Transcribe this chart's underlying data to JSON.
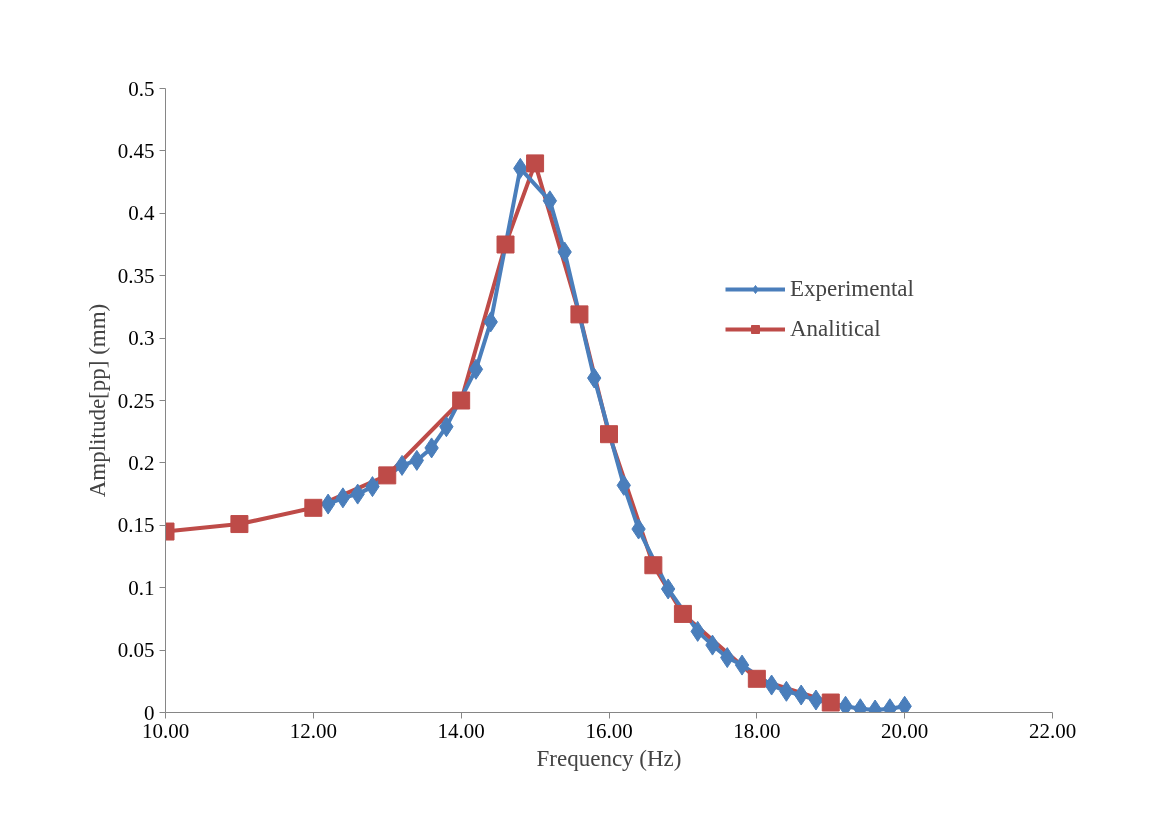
{
  "chart_data": {
    "type": "line",
    "xlabel": "Frequency (Hz)",
    "ylabel": "Amplitude[pp] (mm)",
    "xlim": [
      10,
      22
    ],
    "xticks": [
      {
        "value": 10,
        "label": "10.00"
      },
      {
        "value": 12,
        "label": "12.00"
      },
      {
        "value": 14,
        "label": "14.00"
      },
      {
        "value": 16,
        "label": "16.00"
      },
      {
        "value": 18,
        "label": "18.00"
      },
      {
        "value": 20,
        "label": "20.00"
      },
      {
        "value": 22,
        "label": "22.00"
      }
    ],
    "ylim": [
      0,
      0.5
    ],
    "yticks": [
      0,
      0.05,
      0.1,
      0.15,
      0.2,
      0.25,
      0.3,
      0.35,
      0.4,
      0.45,
      0.5
    ],
    "grid": false,
    "legend": "right",
    "line_style": "solid",
    "series": [
      {
        "name": "Experimental",
        "color": "#4a7ebb",
        "marker": "diamond",
        "x": [
          12.2,
          12.4,
          12.6,
          12.8,
          13.2,
          13.4,
          13.6,
          13.8,
          14.2,
          14.4,
          14.8,
          15.2,
          15.4,
          15.8,
          16.2,
          16.4,
          16.8,
          17.2,
          17.4,
          17.6,
          17.8,
          18.2,
          18.4,
          18.6,
          18.8,
          19.2,
          19.4,
          19.6,
          19.8,
          20.0
        ],
        "values": [
          0.167,
          0.172,
          0.175,
          0.181,
          0.198,
          0.202,
          0.212,
          0.229,
          0.275,
          0.313,
          0.436,
          0.41,
          0.369,
          0.268,
          0.182,
          0.147,
          0.099,
          0.065,
          0.054,
          0.044,
          0.038,
          0.022,
          0.017,
          0.014,
          0.01,
          0.005,
          0.003,
          0.002,
          0.003,
          0.005
        ]
      },
      {
        "name": "Analitical",
        "color": "#be4b48",
        "marker": "square",
        "x": [
          10,
          11,
          12,
          13,
          14,
          14.6,
          15,
          15.6,
          16,
          16.6,
          17,
          18,
          19
        ],
        "values": [
          0.145,
          0.151,
          0.164,
          0.19,
          0.25,
          0.375,
          0.44,
          0.319,
          0.223,
          0.118,
          0.079,
          0.027,
          0.008
        ]
      }
    ]
  }
}
